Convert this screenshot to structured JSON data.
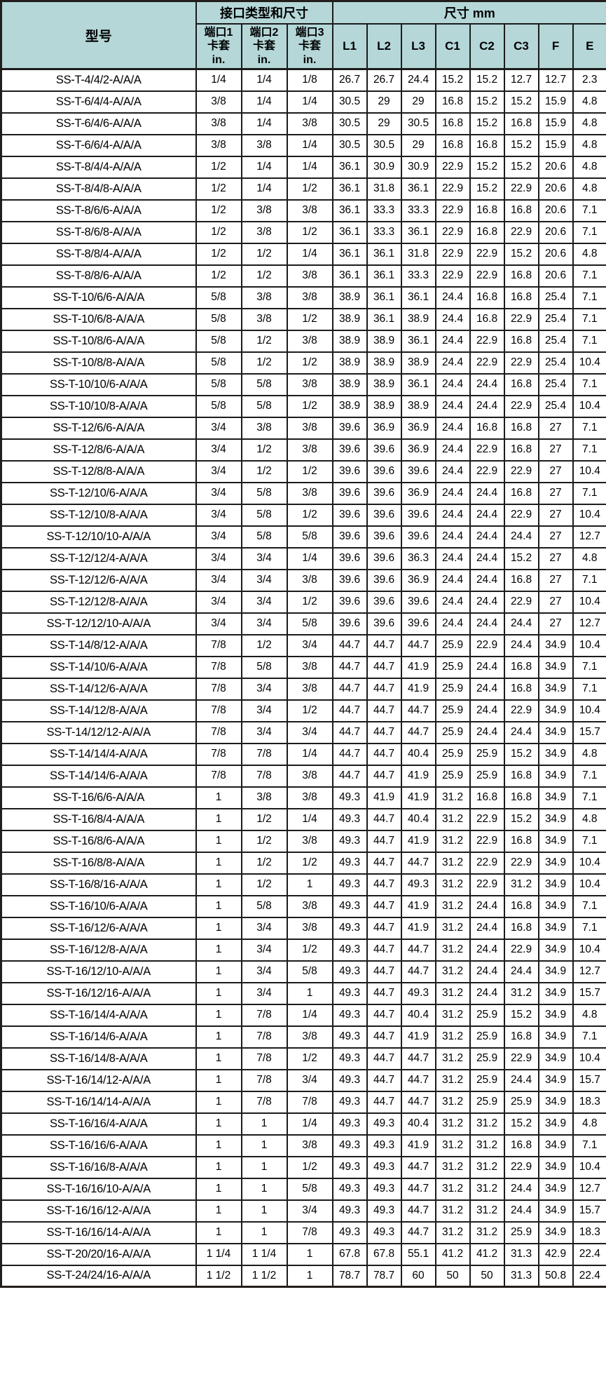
{
  "colors": {
    "header_bg": "#b5d7d8",
    "grid_border": "#1c1c1c",
    "row_bg": "#ffffff",
    "text": "#000000"
  },
  "table": {
    "header": {
      "model": "型号",
      "interface_group": "接口类型和尺寸",
      "size_group": "尺寸 mm",
      "ports": [
        {
          "line1": "端口1",
          "line2": "卡套",
          "line3": "in."
        },
        {
          "line1": "端口2",
          "line2": "卡套",
          "line3": "in."
        },
        {
          "line1": "端口3",
          "line2": "卡套",
          "line3": "in."
        }
      ],
      "size_columns": [
        "L1",
        "L2",
        "L3",
        "C1",
        "C2",
        "C3",
        "F",
        "E"
      ]
    },
    "rows": [
      {
        "model": "SS-T-4/4/2-A/A/A",
        "ports": [
          "1/4",
          "1/4",
          "1/8"
        ],
        "dims": [
          26.7,
          26.7,
          24.4,
          15.2,
          15.2,
          12.7,
          12.7,
          2.3
        ]
      },
      {
        "model": "SS-T-6/4/4-A/A/A",
        "ports": [
          "3/8",
          "1/4",
          "1/4"
        ],
        "dims": [
          30.5,
          29,
          29,
          16.8,
          15.2,
          15.2,
          15.9,
          4.8
        ]
      },
      {
        "model": "SS-T-6/4/6-A/A/A",
        "ports": [
          "3/8",
          "1/4",
          "3/8"
        ],
        "dims": [
          30.5,
          29,
          30.5,
          16.8,
          15.2,
          16.8,
          15.9,
          4.8
        ]
      },
      {
        "model": "SS-T-6/6/4-A/A/A",
        "ports": [
          "3/8",
          "3/8",
          "1/4"
        ],
        "dims": [
          30.5,
          30.5,
          29,
          16.8,
          16.8,
          15.2,
          15.9,
          4.8
        ]
      },
      {
        "model": "SS-T-8/4/4-A/A/A",
        "ports": [
          "1/2",
          "1/4",
          "1/4"
        ],
        "dims": [
          36.1,
          30.9,
          30.9,
          22.9,
          15.2,
          15.2,
          20.6,
          4.8
        ]
      },
      {
        "model": "SS-T-8/4/8-A/A/A",
        "ports": [
          "1/2",
          "1/4",
          "1/2"
        ],
        "dims": [
          36.1,
          31.8,
          36.1,
          22.9,
          15.2,
          22.9,
          20.6,
          4.8
        ]
      },
      {
        "model": "SS-T-8/6/6-A/A/A",
        "ports": [
          "1/2",
          "3/8",
          "3/8"
        ],
        "dims": [
          36.1,
          33.3,
          33.3,
          22.9,
          16.8,
          16.8,
          20.6,
          7.1
        ]
      },
      {
        "model": "SS-T-8/6/8-A/A/A",
        "ports": [
          "1/2",
          "3/8",
          "1/2"
        ],
        "dims": [
          36.1,
          33.3,
          36.1,
          22.9,
          16.8,
          22.9,
          20.6,
          7.1
        ]
      },
      {
        "model": "SS-T-8/8/4-A/A/A",
        "ports": [
          "1/2",
          "1/2",
          "1/4"
        ],
        "dims": [
          36.1,
          36.1,
          31.8,
          22.9,
          22.9,
          15.2,
          20.6,
          4.8
        ]
      },
      {
        "model": "SS-T-8/8/6-A/A/A",
        "ports": [
          "1/2",
          "1/2",
          "3/8"
        ],
        "dims": [
          36.1,
          36.1,
          33.3,
          22.9,
          22.9,
          16.8,
          20.6,
          7.1
        ]
      },
      {
        "model": "SS-T-10/6/6-A/A/A",
        "ports": [
          "5/8",
          "3/8",
          "3/8"
        ],
        "dims": [
          38.9,
          36.1,
          36.1,
          24.4,
          16.8,
          16.8,
          25.4,
          7.1
        ]
      },
      {
        "model": "SS-T-10/6/8-A/A/A",
        "ports": [
          "5/8",
          "3/8",
          "1/2"
        ],
        "dims": [
          38.9,
          36.1,
          38.9,
          24.4,
          16.8,
          22.9,
          25.4,
          7.1
        ]
      },
      {
        "model": "SS-T-10/8/6-A/A/A",
        "ports": [
          "5/8",
          "1/2",
          "3/8"
        ],
        "dims": [
          38.9,
          38.9,
          36.1,
          24.4,
          22.9,
          16.8,
          25.4,
          7.1
        ]
      },
      {
        "model": "SS-T-10/8/8-A/A/A",
        "ports": [
          "5/8",
          "1/2",
          "1/2"
        ],
        "dims": [
          38.9,
          38.9,
          38.9,
          24.4,
          22.9,
          22.9,
          25.4,
          10.4
        ]
      },
      {
        "model": "SS-T-10/10/6-A/A/A",
        "ports": [
          "5/8",
          "5/8",
          "3/8"
        ],
        "dims": [
          38.9,
          38.9,
          36.1,
          24.4,
          24.4,
          16.8,
          25.4,
          7.1
        ]
      },
      {
        "model": "SS-T-10/10/8-A/A/A",
        "ports": [
          "5/8",
          "5/8",
          "1/2"
        ],
        "dims": [
          38.9,
          38.9,
          38.9,
          24.4,
          24.4,
          22.9,
          25.4,
          10.4
        ]
      },
      {
        "model": "SS-T-12/6/6-A/A/A",
        "ports": [
          "3/4",
          "3/8",
          "3/8"
        ],
        "dims": [
          39.6,
          36.9,
          36.9,
          24.4,
          16.8,
          16.8,
          27,
          7.1
        ]
      },
      {
        "model": "SS-T-12/8/6-A/A/A",
        "ports": [
          "3/4",
          "1/2",
          "3/8"
        ],
        "dims": [
          39.6,
          39.6,
          36.9,
          24.4,
          22.9,
          16.8,
          27,
          7.1
        ]
      },
      {
        "model": "SS-T-12/8/8-A/A/A",
        "ports": [
          "3/4",
          "1/2",
          "1/2"
        ],
        "dims": [
          39.6,
          39.6,
          39.6,
          24.4,
          22.9,
          22.9,
          27,
          10.4
        ]
      },
      {
        "model": "SS-T-12/10/6-A/A/A",
        "ports": [
          "3/4",
          "5/8",
          "3/8"
        ],
        "dims": [
          39.6,
          39.6,
          36.9,
          24.4,
          24.4,
          16.8,
          27,
          7.1
        ]
      },
      {
        "model": "SS-T-12/10/8-A/A/A",
        "ports": [
          "3/4",
          "5/8",
          "1/2"
        ],
        "dims": [
          39.6,
          39.6,
          39.6,
          24.4,
          24.4,
          22.9,
          27,
          10.4
        ]
      },
      {
        "model": "SS-T-12/10/10-A/A/A",
        "ports": [
          "3/4",
          "5/8",
          "5/8"
        ],
        "dims": [
          39.6,
          39.6,
          39.6,
          24.4,
          24.4,
          24.4,
          27,
          12.7
        ]
      },
      {
        "model": "SS-T-12/12/4-A/A/A",
        "ports": [
          "3/4",
          "3/4",
          "1/4"
        ],
        "dims": [
          39.6,
          39.6,
          36.3,
          24.4,
          24.4,
          15.2,
          27,
          4.8
        ]
      },
      {
        "model": "SS-T-12/12/6-A/A/A",
        "ports": [
          "3/4",
          "3/4",
          "3/8"
        ],
        "dims": [
          39.6,
          39.6,
          36.9,
          24.4,
          24.4,
          16.8,
          27,
          7.1
        ]
      },
      {
        "model": "SS-T-12/12/8-A/A/A",
        "ports": [
          "3/4",
          "3/4",
          "1/2"
        ],
        "dims": [
          39.6,
          39.6,
          39.6,
          24.4,
          24.4,
          22.9,
          27,
          10.4
        ]
      },
      {
        "model": "SS-T-12/12/10-A/A/A",
        "ports": [
          "3/4",
          "3/4",
          "5/8"
        ],
        "dims": [
          39.6,
          39.6,
          39.6,
          24.4,
          24.4,
          24.4,
          27,
          12.7
        ]
      },
      {
        "model": "SS-T-14/8/12-A/A/A",
        "ports": [
          "7/8",
          "1/2",
          "3/4"
        ],
        "dims": [
          44.7,
          44.7,
          44.7,
          25.9,
          22.9,
          24.4,
          34.9,
          10.4
        ]
      },
      {
        "model": "SS-T-14/10/6-A/A/A",
        "ports": [
          "7/8",
          "5/8",
          "3/8"
        ],
        "dims": [
          44.7,
          44.7,
          41.9,
          25.9,
          24.4,
          16.8,
          34.9,
          7.1
        ]
      },
      {
        "model": "SS-T-14/12/6-A/A/A",
        "ports": [
          "7/8",
          "3/4",
          "3/8"
        ],
        "dims": [
          44.7,
          44.7,
          41.9,
          25.9,
          24.4,
          16.8,
          34.9,
          7.1
        ]
      },
      {
        "model": "SS-T-14/12/8-A/A/A",
        "ports": [
          "7/8",
          "3/4",
          "1/2"
        ],
        "dims": [
          44.7,
          44.7,
          44.7,
          25.9,
          24.4,
          22.9,
          34.9,
          10.4
        ]
      },
      {
        "model": "SS-T-14/12/12-A/A/A",
        "ports": [
          "7/8",
          "3/4",
          "3/4"
        ],
        "dims": [
          44.7,
          44.7,
          44.7,
          25.9,
          24.4,
          24.4,
          34.9,
          15.7
        ]
      },
      {
        "model": "SS-T-14/14/4-A/A/A",
        "ports": [
          "7/8",
          "7/8",
          "1/4"
        ],
        "dims": [
          44.7,
          44.7,
          40.4,
          25.9,
          25.9,
          15.2,
          34.9,
          4.8
        ]
      },
      {
        "model": "SS-T-14/14/6-A/A/A",
        "ports": [
          "7/8",
          "7/8",
          "3/8"
        ],
        "dims": [
          44.7,
          44.7,
          41.9,
          25.9,
          25.9,
          16.8,
          34.9,
          7.1
        ]
      },
      {
        "model": "SS-T-16/6/6-A/A/A",
        "ports": [
          "1",
          "3/8",
          "3/8"
        ],
        "dims": [
          49.3,
          41.9,
          41.9,
          31.2,
          16.8,
          16.8,
          34.9,
          7.1
        ]
      },
      {
        "model": "SS-T-16/8/4-A/A/A",
        "ports": [
          "1",
          "1/2",
          "1/4"
        ],
        "dims": [
          49.3,
          44.7,
          40.4,
          31.2,
          22.9,
          15.2,
          34.9,
          4.8
        ]
      },
      {
        "model": "SS-T-16/8/6-A/A/A",
        "ports": [
          "1",
          "1/2",
          "3/8"
        ],
        "dims": [
          49.3,
          44.7,
          41.9,
          31.2,
          22.9,
          16.8,
          34.9,
          7.1
        ]
      },
      {
        "model": "SS-T-16/8/8-A/A/A",
        "ports": [
          "1",
          "1/2",
          "1/2"
        ],
        "dims": [
          49.3,
          44.7,
          44.7,
          31.2,
          22.9,
          22.9,
          34.9,
          10.4
        ]
      },
      {
        "model": "SS-T-16/8/16-A/A/A",
        "ports": [
          "1",
          "1/2",
          "1"
        ],
        "dims": [
          49.3,
          44.7,
          49.3,
          31.2,
          22.9,
          31.2,
          34.9,
          10.4
        ]
      },
      {
        "model": "SS-T-16/10/6-A/A/A",
        "ports": [
          "1",
          "5/8",
          "3/8"
        ],
        "dims": [
          49.3,
          44.7,
          41.9,
          31.2,
          24.4,
          16.8,
          34.9,
          7.1
        ]
      },
      {
        "model": "SS-T-16/12/6-A/A/A",
        "ports": [
          "1",
          "3/4",
          "3/8"
        ],
        "dims": [
          49.3,
          44.7,
          41.9,
          31.2,
          24.4,
          16.8,
          34.9,
          7.1
        ]
      },
      {
        "model": "SS-T-16/12/8-A/A/A",
        "ports": [
          "1",
          "3/4",
          "1/2"
        ],
        "dims": [
          49.3,
          44.7,
          44.7,
          31.2,
          24.4,
          22.9,
          34.9,
          10.4
        ]
      },
      {
        "model": "SS-T-16/12/10-A/A/A",
        "ports": [
          "1",
          "3/4",
          "5/8"
        ],
        "dims": [
          49.3,
          44.7,
          44.7,
          31.2,
          24.4,
          24.4,
          34.9,
          12.7
        ]
      },
      {
        "model": "SS-T-16/12/16-A/A/A",
        "ports": [
          "1",
          "3/4",
          "1"
        ],
        "dims": [
          49.3,
          44.7,
          49.3,
          31.2,
          24.4,
          31.2,
          34.9,
          15.7
        ]
      },
      {
        "model": "SS-T-16/14/4-A/A/A",
        "ports": [
          "1",
          "7/8",
          "1/4"
        ],
        "dims": [
          49.3,
          44.7,
          40.4,
          31.2,
          25.9,
          15.2,
          34.9,
          4.8
        ]
      },
      {
        "model": "SS-T-16/14/6-A/A/A",
        "ports": [
          "1",
          "7/8",
          "3/8"
        ],
        "dims": [
          49.3,
          44.7,
          41.9,
          31.2,
          25.9,
          16.8,
          34.9,
          7.1
        ]
      },
      {
        "model": "SS-T-16/14/8-A/A/A",
        "ports": [
          "1",
          "7/8",
          "1/2"
        ],
        "dims": [
          49.3,
          44.7,
          44.7,
          31.2,
          25.9,
          22.9,
          34.9,
          10.4
        ]
      },
      {
        "model": "SS-T-16/14/12-A/A/A",
        "ports": [
          "1",
          "7/8",
          "3/4"
        ],
        "dims": [
          49.3,
          44.7,
          44.7,
          31.2,
          25.9,
          24.4,
          34.9,
          15.7
        ]
      },
      {
        "model": "SS-T-16/14/14-A/A/A",
        "ports": [
          "1",
          "7/8",
          "7/8"
        ],
        "dims": [
          49.3,
          44.7,
          44.7,
          31.2,
          25.9,
          25.9,
          34.9,
          18.3
        ]
      },
      {
        "model": "SS-T-16/16/4-A/A/A",
        "ports": [
          "1",
          "1",
          "1/4"
        ],
        "dims": [
          49.3,
          49.3,
          40.4,
          31.2,
          31.2,
          15.2,
          34.9,
          4.8
        ]
      },
      {
        "model": "SS-T-16/16/6-A/A/A",
        "ports": [
          "1",
          "1",
          "3/8"
        ],
        "dims": [
          49.3,
          49.3,
          41.9,
          31.2,
          31.2,
          16.8,
          34.9,
          7.1
        ]
      },
      {
        "model": "SS-T-16/16/8-A/A/A",
        "ports": [
          "1",
          "1",
          "1/2"
        ],
        "dims": [
          49.3,
          49.3,
          44.7,
          31.2,
          31.2,
          22.9,
          34.9,
          10.4
        ]
      },
      {
        "model": "SS-T-16/16/10-A/A/A",
        "ports": [
          "1",
          "1",
          "5/8"
        ],
        "dims": [
          49.3,
          49.3,
          44.7,
          31.2,
          31.2,
          24.4,
          34.9,
          12.7
        ]
      },
      {
        "model": "SS-T-16/16/12-A/A/A",
        "ports": [
          "1",
          "1",
          "3/4"
        ],
        "dims": [
          49.3,
          49.3,
          44.7,
          31.2,
          31.2,
          24.4,
          34.9,
          15.7
        ]
      },
      {
        "model": "SS-T-16/16/14-A/A/A",
        "ports": [
          "1",
          "1",
          "7/8"
        ],
        "dims": [
          49.3,
          49.3,
          44.7,
          31.2,
          31.2,
          25.9,
          34.9,
          18.3
        ]
      },
      {
        "model": "SS-T-20/20/16-A/A/A",
        "ports": [
          "1 1/4",
          "1 1/4",
          "1"
        ],
        "dims": [
          67.8,
          67.8,
          55.1,
          41.2,
          41.2,
          31.3,
          42.9,
          22.4
        ]
      },
      {
        "model": "SS-T-24/24/16-A/A/A",
        "ports": [
          "1 1/2",
          "1 1/2",
          "1"
        ],
        "dims": [
          78.7,
          78.7,
          60,
          50,
          50,
          31.3,
          50.8,
          22.4
        ]
      }
    ]
  }
}
